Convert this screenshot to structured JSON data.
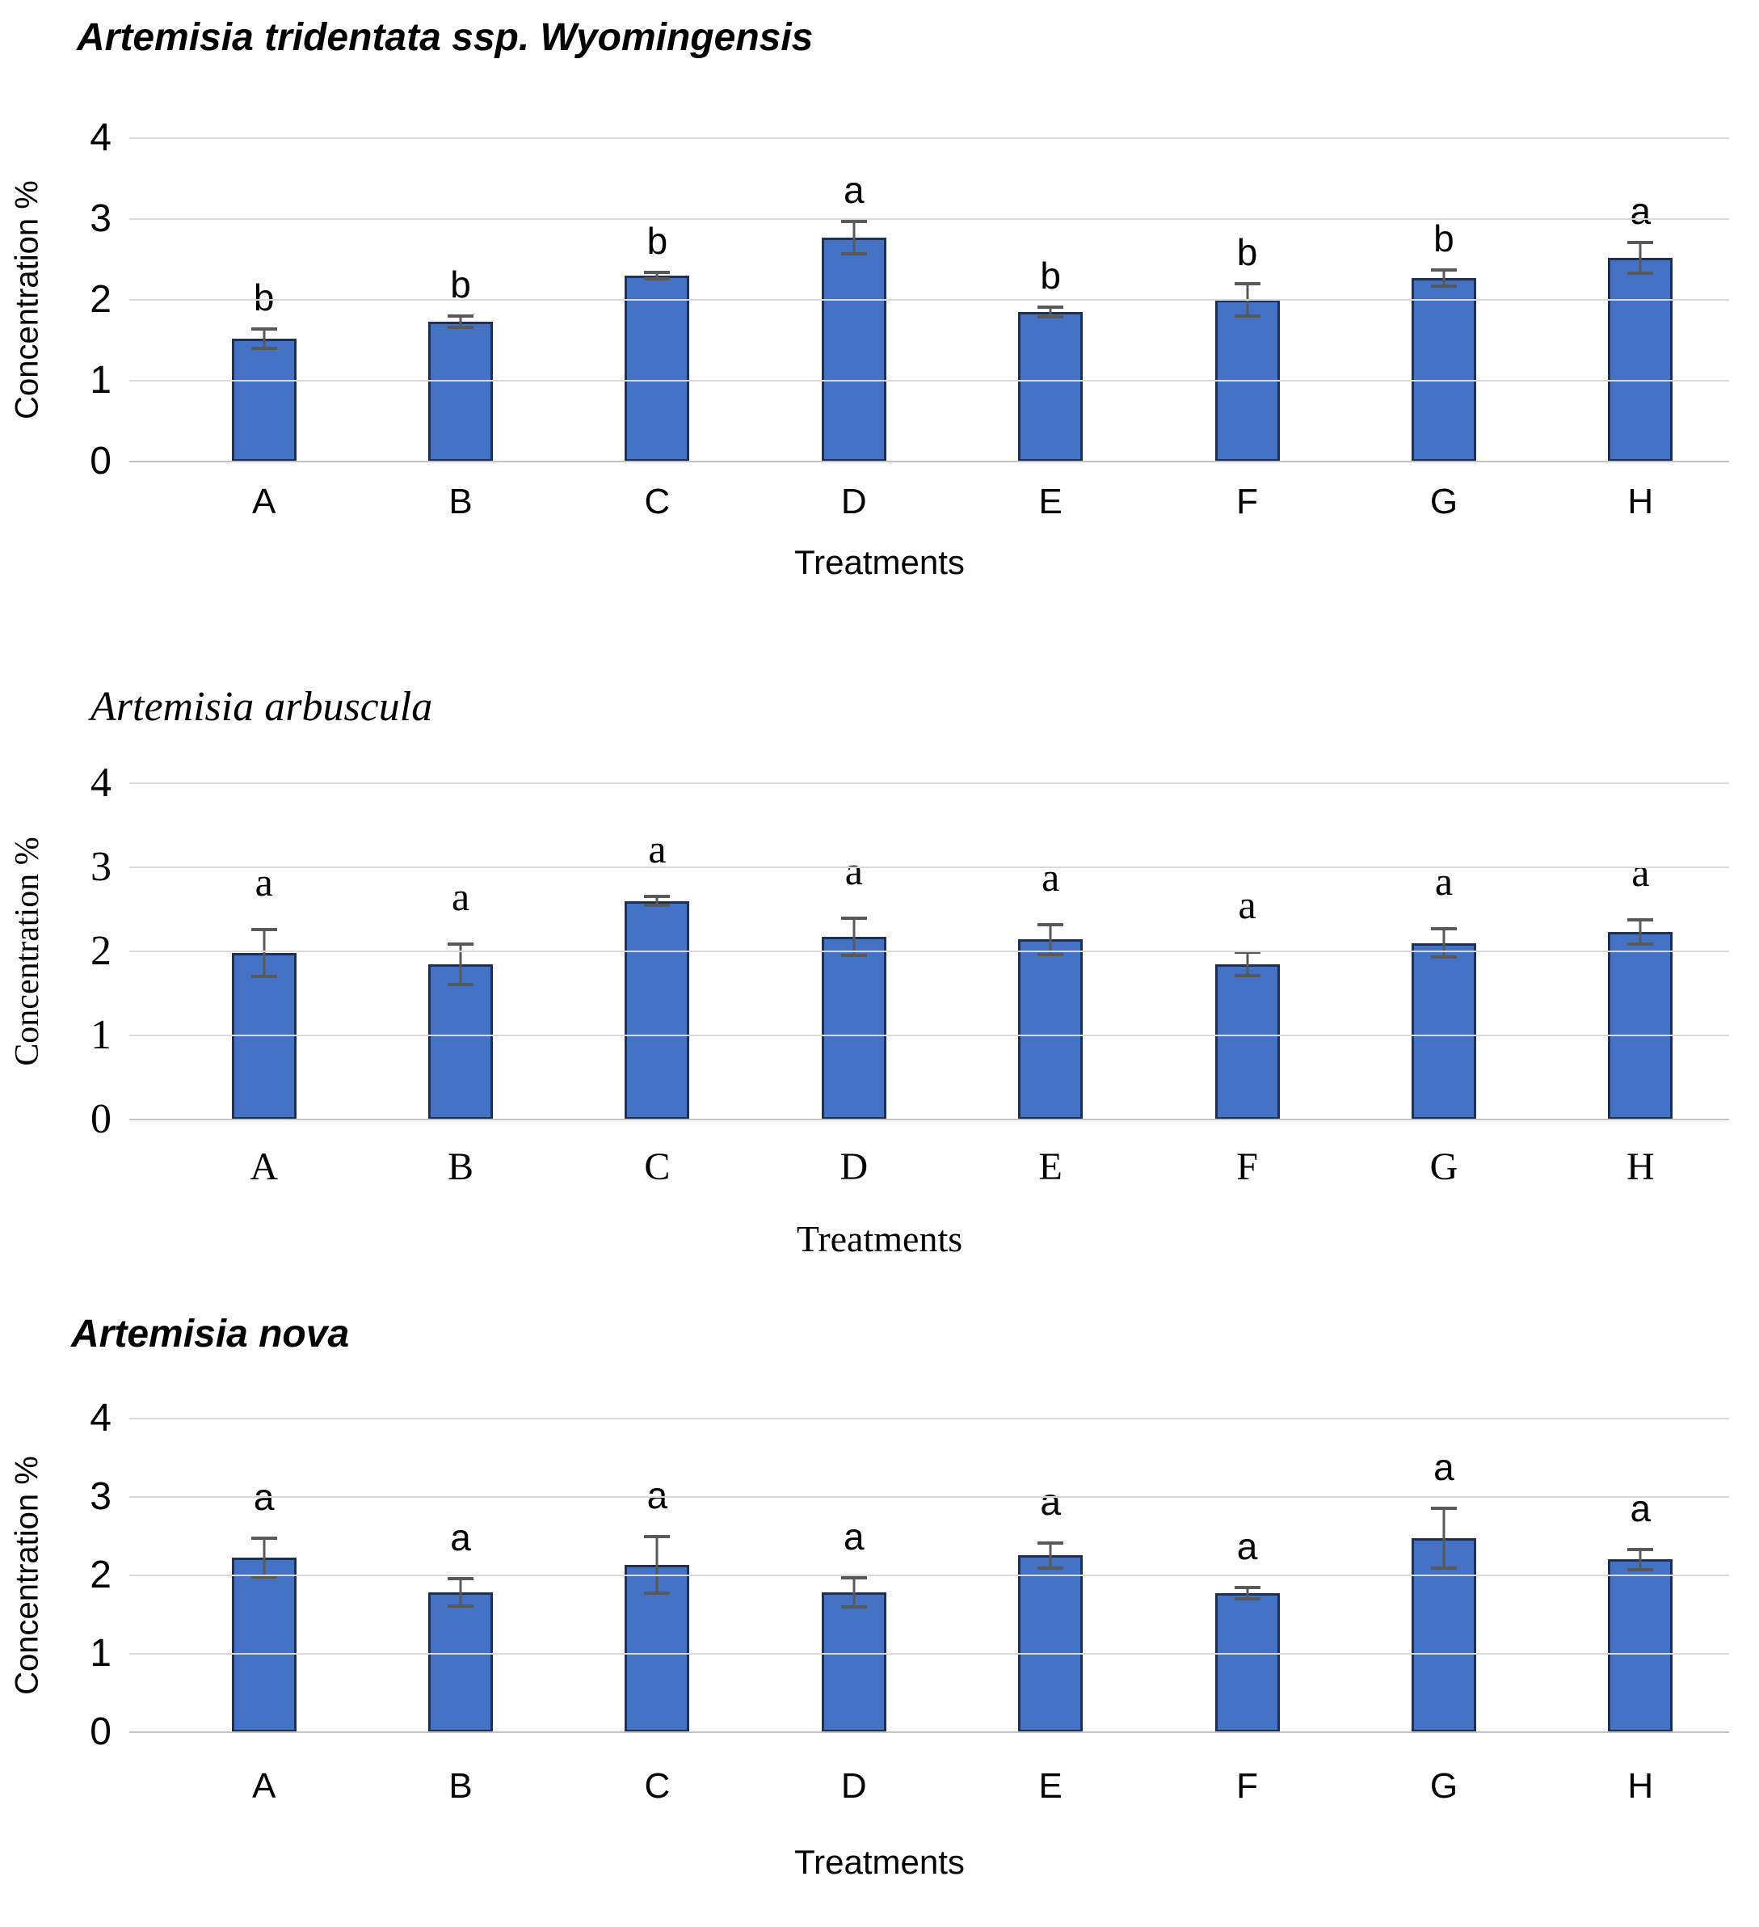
{
  "chart_data": [
    {
      "type": "bar",
      "title": "Artemisia tridentata ssp. Wyomingensis",
      "categories": [
        "A",
        "B",
        "C",
        "D",
        "E",
        "F",
        "G",
        "H"
      ],
      "values": [
        1.52,
        1.73,
        2.3,
        2.77,
        1.85,
        2.0,
        2.27,
        2.52
      ],
      "error_bars": [
        0.14,
        0.09,
        0.06,
        0.22,
        0.08,
        0.22,
        0.12,
        0.21
      ],
      "point_labels": [
        "b",
        "b",
        "b",
        "a",
        "b",
        "b",
        "b",
        "a"
      ],
      "xlabel": "Treatments",
      "ylabel": "Concentration %",
      "ylim": [
        0,
        4
      ],
      "yticks": [
        0,
        1,
        2,
        3,
        4
      ],
      "grid": true,
      "legend": "none",
      "font_style": "sans",
      "bar_color": "#4472C4",
      "bar_border_color": "#1F3057",
      "error_bar_color": "#595959",
      "gridline_color": "#D9D9D9"
    },
    {
      "type": "bar",
      "title": "Artemisia arbuscula",
      "categories": [
        "A",
        "B",
        "C",
        "D",
        "E",
        "F",
        "G",
        "H"
      ],
      "values": [
        1.98,
        1.85,
        2.6,
        2.17,
        2.14,
        1.85,
        2.1,
        2.23
      ],
      "error_bars": [
        0.3,
        0.26,
        0.07,
        0.24,
        0.2,
        0.16,
        0.19,
        0.16
      ],
      "point_labels": [
        "a",
        "a",
        "a",
        "a",
        "a",
        "a",
        "a",
        "a"
      ],
      "xlabel": "Treatments",
      "ylabel": "Concentration %",
      "ylim": [
        0,
        4
      ],
      "yticks": [
        0,
        1,
        2,
        3,
        4
      ],
      "grid": true,
      "legend": "none",
      "font_style": "serif",
      "bar_color": "#4472C4",
      "bar_border_color": "#1F3057",
      "error_bar_color": "#595959",
      "gridline_color": "#D9D9D9"
    },
    {
      "type": "bar",
      "title": "Artemisia nova",
      "categories": [
        "A",
        "B",
        "C",
        "D",
        "E",
        "F",
        "G",
        "H"
      ],
      "values": [
        2.22,
        1.78,
        2.13,
        1.78,
        2.25,
        1.77,
        2.47,
        2.2
      ],
      "error_bars": [
        0.27,
        0.2,
        0.38,
        0.21,
        0.18,
        0.09,
        0.4,
        0.15
      ],
      "point_labels": [
        "a",
        "a",
        "a",
        "a",
        "a",
        "a",
        "a",
        "a"
      ],
      "xlabel": "Treatments",
      "ylabel": "Concentration %",
      "ylim": [
        0,
        4
      ],
      "yticks": [
        0,
        1,
        2,
        3,
        4
      ],
      "grid": true,
      "legend": "none",
      "font_style": "sans",
      "bar_color": "#4472C4",
      "bar_border_color": "#1F3057",
      "error_bar_color": "#595959",
      "gridline_color": "#D9D9D9"
    }
  ]
}
